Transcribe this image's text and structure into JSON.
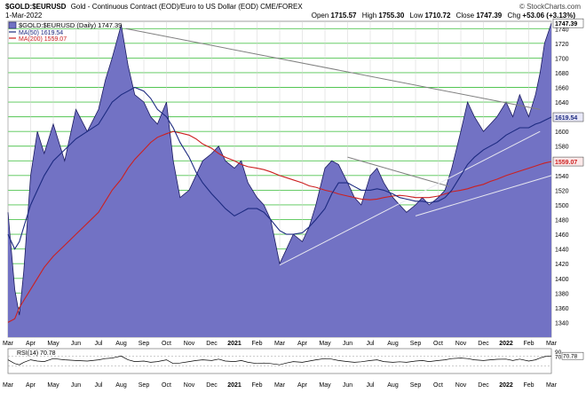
{
  "header": {
    "symbol": "$GOLD:$EURUSD",
    "description": "Gold - Continuous Contract (EOD)/Euro to US Dollar (EOD) CME/FOREX",
    "date": "1-Mar-2022",
    "open_label": "Open",
    "open": "1715.57",
    "high_label": "High",
    "high": "1755.30",
    "low_label": "Low",
    "low": "1710.72",
    "close_label": "Close",
    "close": "1747.39",
    "chg_label": "Chg",
    "chg": "+53.06 (+3.13%)",
    "copyright": "© StockCharts.com"
  },
  "legend": {
    "main": "$GOLD:$EURUSD (Daily) 1747.39",
    "ma50": "MA(50) 1619.54",
    "ma200": "MA(200) 1559.07",
    "rsi": "RSI(14) 70.78"
  },
  "price_tags": {
    "last": "1747.39",
    "ma50": "1619.54",
    "ma200": "1559.07",
    "rsi": "70.78"
  },
  "colors": {
    "area_fill": "#7272c4",
    "area_line": "#1a1a60",
    "ma50": "#1c2a80",
    "ma200": "#cc2020",
    "grid_green": "#52c552",
    "trendline_grey": "#808080",
    "trendline_white": "#e8e8f0",
    "rsi_line": "#000000"
  },
  "chart_data": {
    "type": "area",
    "ylim": [
      1320,
      1750
    ],
    "y_ticks": [
      1340,
      1360,
      1380,
      1400,
      1420,
      1440,
      1460,
      1480,
      1500,
      1520,
      1540,
      1560,
      1580,
      1600,
      1620,
      1640,
      1660,
      1680,
      1700,
      1720,
      1740
    ],
    "x_labels": [
      "Mar",
      "Apr",
      "May",
      "Jun",
      "Jul",
      "Aug",
      "Sep",
      "Oct",
      "Nov",
      "Dec",
      "2021",
      "Feb",
      "Mar",
      "Apr",
      "May",
      "Jun",
      "Jul",
      "Aug",
      "Sep",
      "Oct",
      "Nov",
      "Dec",
      "2022",
      "Feb",
      "Mar"
    ],
    "x_label_months": [
      0,
      1,
      2,
      3,
      4,
      5,
      6,
      7,
      8,
      9,
      10,
      11,
      12,
      13,
      14,
      15,
      16,
      17,
      18,
      19,
      20,
      21,
      22,
      23,
      24
    ],
    "x_months": [
      0,
      0.3,
      0.5,
      0.7,
      1.0,
      1.3,
      1.6,
      2.0,
      2.5,
      3.0,
      3.5,
      4.0,
      4.3,
      4.6,
      5.0,
      5.3,
      5.6,
      6.0,
      6.3,
      6.6,
      7.0,
      7.3,
      7.6,
      8.0,
      8.3,
      8.6,
      9.0,
      9.3,
      9.6,
      10.0,
      10.3,
      10.6,
      11.0,
      11.3,
      11.6,
      12.0,
      12.3,
      12.6,
      13.0,
      13.3,
      13.6,
      14.0,
      14.3,
      14.6,
      15.0,
      15.3,
      15.6,
      16.0,
      16.3,
      16.6,
      17.0,
      17.3,
      17.6,
      18.0,
      18.3,
      18.6,
      19.0,
      19.3,
      19.6,
      20.0,
      20.3,
      20.6,
      21.0,
      21.3,
      21.6,
      22.0,
      22.3,
      22.6,
      23.0,
      23.3,
      23.5,
      23.7,
      24.0
    ],
    "series": [
      {
        "name": "$GOLD:$EURUSD",
        "values": [
          1490,
          1385,
          1350,
          1410,
          1540,
          1600,
          1570,
          1610,
          1560,
          1630,
          1600,
          1630,
          1670,
          1700,
          1745,
          1690,
          1650,
          1640,
          1620,
          1610,
          1640,
          1560,
          1510,
          1520,
          1540,
          1560,
          1570,
          1580,
          1560,
          1550,
          1560,
          1530,
          1510,
          1500,
          1480,
          1420,
          1440,
          1460,
          1450,
          1470,
          1500,
          1550,
          1560,
          1555,
          1530,
          1510,
          1500,
          1540,
          1550,
          1530,
          1510,
          1500,
          1490,
          1500,
          1510,
          1500,
          1510,
          1520,
          1550,
          1600,
          1640,
          1620,
          1600,
          1610,
          1620,
          1640,
          1620,
          1650,
          1620,
          1650,
          1680,
          1720,
          1747.39
        ]
      },
      {
        "name": "MA(50)",
        "values": [
          1460,
          1440,
          1450,
          1470,
          1500,
          1520,
          1540,
          1560,
          1575,
          1590,
          1600,
          1610,
          1625,
          1640,
          1650,
          1655,
          1660,
          1655,
          1645,
          1630,
          1620,
          1605,
          1585,
          1565,
          1545,
          1530,
          1515,
          1505,
          1495,
          1485,
          1490,
          1495,
          1495,
          1490,
          1480,
          1465,
          1460,
          1460,
          1462,
          1470,
          1480,
          1495,
          1515,
          1530,
          1530,
          1525,
          1520,
          1520,
          1522,
          1520,
          1515,
          1510,
          1508,
          1505,
          1505,
          1503,
          1505,
          1510,
          1520,
          1540,
          1555,
          1565,
          1575,
          1580,
          1585,
          1595,
          1600,
          1605,
          1605,
          1610,
          1612,
          1615,
          1619.54
        ]
      },
      {
        "name": "MA(200)",
        "values": [
          1340,
          1345,
          1360,
          1370,
          1385,
          1400,
          1415,
          1430,
          1445,
          1460,
          1475,
          1490,
          1505,
          1520,
          1535,
          1550,
          1562,
          1575,
          1585,
          1592,
          1597,
          1600,
          1598,
          1595,
          1590,
          1583,
          1577,
          1570,
          1565,
          1560,
          1555,
          1552,
          1550,
          1548,
          1545,
          1540,
          1537,
          1534,
          1530,
          1526,
          1524,
          1520,
          1518,
          1515,
          1512,
          1510,
          1508,
          1507,
          1508,
          1510,
          1512,
          1513,
          1512,
          1510,
          1510,
          1510,
          1512,
          1515,
          1518,
          1520,
          1522,
          1525,
          1528,
          1532,
          1535,
          1540,
          1543,
          1546,
          1550,
          1553,
          1555,
          1557,
          1559.07
        ]
      }
    ],
    "trendlines": [
      {
        "name": "resistance",
        "x": [
          5.2,
          23.5
        ],
        "y": [
          1740,
          1630
        ]
      },
      {
        "name": "resistance-2",
        "x": [
          15.0,
          19.5
        ],
        "y": [
          1565,
          1525
        ]
      },
      {
        "name": "support",
        "x": [
          12.0,
          23.5
        ],
        "y": [
          1418,
          1600
        ]
      },
      {
        "name": "support-2",
        "x": [
          18.0,
          24.0
        ],
        "y": [
          1485,
          1540
        ]
      }
    ],
    "rsi": {
      "name": "RSI(14)",
      "ylim": [
        0,
        100
      ],
      "levels": [
        30,
        70
      ],
      "tick_labels": [
        "90",
        "70"
      ],
      "values": [
        55,
        40,
        35,
        45,
        55,
        50,
        48,
        60,
        55,
        52,
        50,
        55,
        60,
        62,
        70,
        55,
        48,
        50,
        45,
        48,
        55,
        40,
        42,
        48,
        52,
        55,
        52,
        58,
        50,
        48,
        52,
        45,
        40,
        42,
        40,
        35,
        42,
        48,
        45,
        50,
        55,
        60,
        58,
        52,
        48,
        45,
        47,
        52,
        55,
        48,
        45,
        47,
        45,
        50,
        52,
        48,
        52,
        55,
        60,
        62,
        60,
        55,
        52,
        55,
        57,
        58,
        52,
        58,
        50,
        55,
        62,
        68,
        70.78
      ]
    }
  }
}
